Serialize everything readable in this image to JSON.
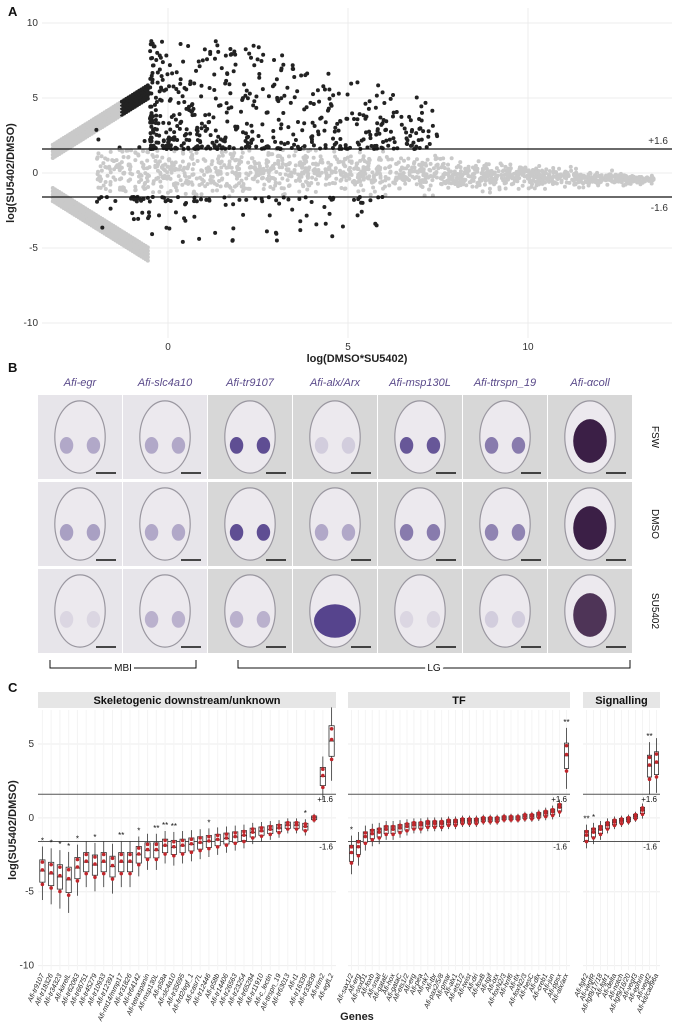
{
  "panelA": {
    "letter": "A",
    "xlabel": "log(DMSO*SU5402)",
    "ylabel": "log(SU5402/DMSO)",
    "xticks": [
      0,
      5,
      10
    ],
    "yticks": [
      10,
      5,
      0,
      -5,
      -10
    ],
    "xlim": [
      -3.5,
      14
    ],
    "ylim": [
      -11,
      11
    ],
    "thresholds": [
      {
        "value": 1.6,
        "label": "+1.6"
      },
      {
        "value": -1.6,
        "label": "-1.6"
      }
    ],
    "colors": {
      "significant": "#222222",
      "nonsignificant": "#c9c9c9"
    }
  },
  "panelB": {
    "letter": "B",
    "genes": [
      "Afi-egr",
      "Afi-slc4a10",
      "Afi-tr9107",
      "Afi-alx/Arx",
      "Afi-msp130L",
      "Afi-ttrspn_19",
      "Afi-αcoll"
    ],
    "conditions": [
      "FSW",
      "DMSO",
      "SU5402"
    ],
    "groups": [
      {
        "label": "MBI"
      },
      {
        "label": "LG"
      }
    ],
    "stain_levels": [
      [
        0.35,
        0.35,
        0.85,
        0.15,
        0.8,
        0.6,
        0.95
      ],
      [
        0.4,
        0.35,
        0.85,
        0.35,
        0.6,
        0.55,
        0.95
      ],
      [
        0.1,
        0.3,
        0.3,
        0.9,
        0.1,
        0.15,
        0.85
      ]
    ]
  },
  "panelC": {
    "letter": "C",
    "ylabel": "log(SU5402/DMSO)",
    "xlabel": "Genes",
    "yticks": [
      5,
      0,
      -5,
      -10
    ],
    "ylim": [
      -10.3,
      7.3
    ],
    "thresholds": [
      {
        "value": 1.6,
        "label": "+1.6"
      },
      {
        "value": -1.6,
        "label": "-1.6"
      }
    ],
    "facets": [
      {
        "title": "Skeletogenic downstream/unknown",
        "genes": [
          "Afi-tr9107",
          "Afi-tr18326",
          "Afi-tr34323",
          "Afi-kirrelL",
          "Afi-tr62063",
          "Afi-tr66751",
          "Afi-tr45279",
          "Afi-tr10933",
          "Afi-tr12391",
          "Afi-mt14/mmp17",
          "Afi-tr31826",
          "Afi-tr64142",
          "Afi-tetraspanin",
          "Afi-msp130L",
          "Afi-p58a",
          "Afi-slc4a10",
          "Afi-tr35695",
          "Afi-frd2/egf_1",
          "Afi-casr7L",
          "Afi-tr12446",
          "Afi-p58b",
          "Afi-tr14406",
          "Afi-tr26563",
          "Afi-tr23254",
          "Afi-tr65284",
          "Afi-tr11910",
          "Afi-c_lectin",
          "Afi-ttrspn_19",
          "Afi-tr63013",
          "Afi-t1",
          "Afi-tr16339",
          "Afi-tr33839",
          "Afi-trim2",
          "Afi-egfL2"
        ],
        "medians": [
          -3.6,
          -3.8,
          -4.0,
          -4.2,
          -3.4,
          -3.0,
          -3.2,
          -3.0,
          -3.3,
          -3.0,
          -3.0,
          -2.5,
          -2.2,
          -2.2,
          -1.9,
          -2.0,
          -1.9,
          -1.8,
          -1.7,
          -1.6,
          -1.5,
          -1.4,
          -1.3,
          -1.2,
          -1.0,
          -0.9,
          -0.8,
          -0.7,
          -0.5,
          -0.5,
          -0.6,
          0.0,
          2.8,
          5.2
        ],
        "sig": [
          "*",
          "*",
          "*",
          "*",
          "*",
          "",
          "*",
          "",
          "",
          "**",
          "",
          "*",
          "",
          "**",
          "**",
          "**",
          "",
          "",
          "",
          "*",
          "",
          "",
          "",
          "",
          "",
          "",
          "",
          "",
          "",
          "",
          "*",
          "",
          "",
          ""
        ]
      },
      {
        "title": "TF",
        "genes": [
          "Afi-sax1/2",
          "Afi-erg",
          "Afi-soxD1",
          "Afi-foxb",
          "Afi-snail",
          "Afi-gataE",
          "Afi-hox",
          "Afi-gataC",
          "Afi-ets1/2",
          "Afi-erg",
          "Afi-pea",
          "Afi-nk7",
          "Afi-tbr",
          "Afi-pax2/5/8",
          "Afi-pmar",
          "Afi-alx1",
          "Afi-ets1/2",
          "Afi-twist",
          "Afi-dri",
          "Afi-foxB",
          "Afi-tgif",
          "Afi-otx",
          "Afi-foxN2/3",
          "Afi-hnf6",
          "Afi-tlx",
          "Afi-foxN2/3",
          "Afi-hesC",
          "Afi-dlx",
          "Afi-creb1",
          "Afi-jun",
          "Afi-ppsx",
          "Afi-alx/arx"
        ],
        "medians": [
          -2.4,
          -2.0,
          -1.3,
          -1.1,
          -1.0,
          -0.8,
          -0.8,
          -0.7,
          -0.6,
          -0.5,
          -0.5,
          -0.4,
          -0.4,
          -0.4,
          -0.3,
          -0.3,
          -0.2,
          -0.2,
          -0.2,
          -0.1,
          -0.1,
          -0.1,
          0.0,
          0.0,
          0.0,
          0.1,
          0.1,
          0.2,
          0.3,
          0.4,
          0.7,
          4.2
        ],
        "sig": [
          "*",
          "",
          "",
          "",
          "",
          "",
          "",
          "",
          "",
          "",
          "",
          "",
          "",
          "",
          "",
          "",
          "",
          "",
          "",
          "",
          "",
          "",
          "",
          "",
          "",
          "",
          "",
          "",
          "",
          "",
          "",
          "**"
        ]
      },
      {
        "title": "Signalling",
        "genes": [
          "Afi-fgfr2",
          "Afi-vegfR",
          "Afi-fgf8/17/18",
          "Afi-fgfr1",
          "Afi-delta",
          "Afi-notch",
          "Afi-fgf9/16/20",
          "Afi-vegf3",
          "Afi-ephrin",
          "Afi-vegf2",
          "Afi-kit/cad96a"
        ],
        "medians": [
          -1.2,
          -1.0,
          -0.8,
          -0.5,
          -0.3,
          -0.2,
          -0.1,
          0.1,
          0.5,
          3.5,
          3.7
        ],
        "sig": [
          "**",
          "*",
          "",
          "",
          "",
          "",
          "",
          "",
          "",
          "**",
          ""
        ]
      }
    ]
  }
}
